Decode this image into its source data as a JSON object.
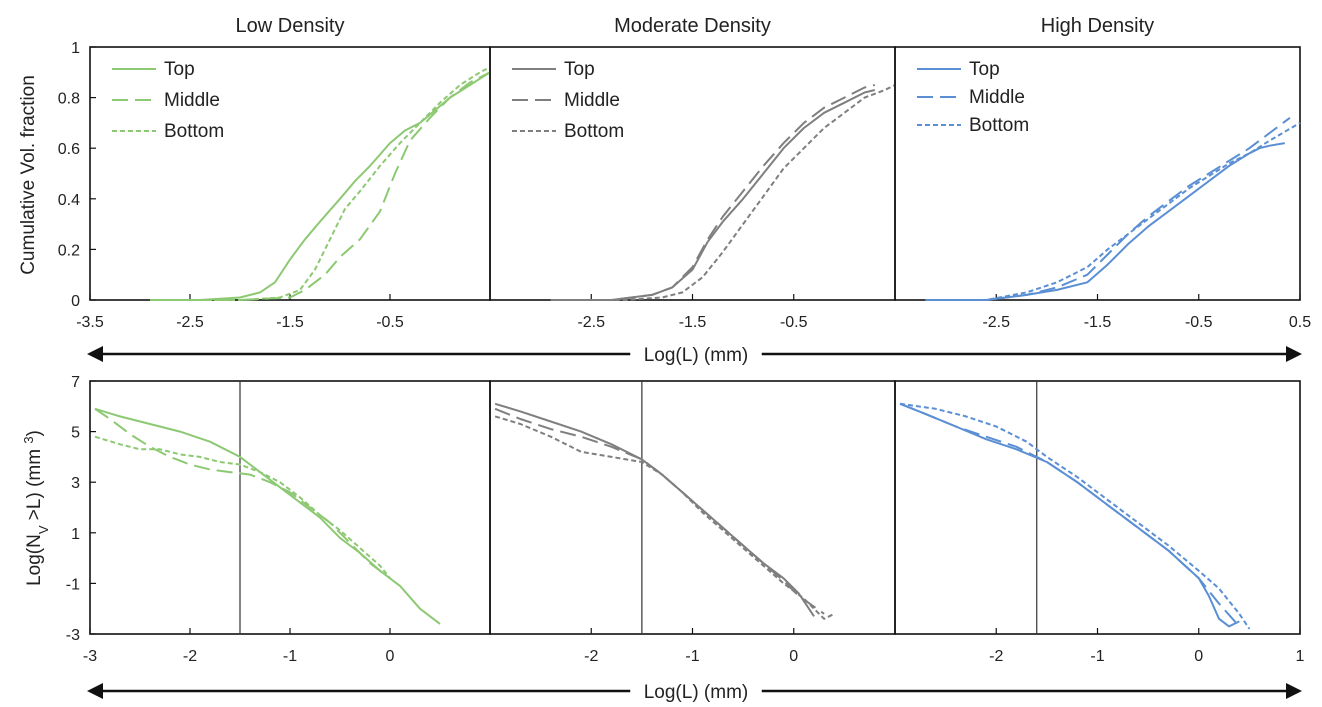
{
  "chart_data": [
    {
      "type": "line",
      "title": "Low Density",
      "ylabel": "Cumulative Vol. fraction",
      "xlabel": "Log(L) (mm)",
      "xlim": [
        -3.5,
        0.5
      ],
      "ylim": [
        0,
        1
      ],
      "xticks": [
        -3.5,
        -2.5,
        -1.5,
        -0.5
      ],
      "yticks": [
        0,
        0.2,
        0.4,
        0.6,
        0.8,
        1
      ],
      "legend_position": "top-left",
      "color": "#8cc972",
      "series": [
        {
          "name": "Top",
          "dash": "solid",
          "x": [
            -2.9,
            -2.4,
            -2.0,
            -1.8,
            -1.65,
            -1.5,
            -1.35,
            -1.2,
            -1.0,
            -0.85,
            -0.7,
            -0.5,
            -0.35,
            -0.2,
            -0.05,
            0.1,
            0.3,
            0.5
          ],
          "y": [
            0.0,
            0.0,
            0.01,
            0.03,
            0.07,
            0.16,
            0.24,
            0.31,
            0.4,
            0.47,
            0.53,
            0.62,
            0.67,
            0.7,
            0.75,
            0.8,
            0.85,
            0.9
          ]
        },
        {
          "name": "Middle",
          "dash": "long",
          "x": [
            -2.9,
            -2.0,
            -1.5,
            -1.35,
            -1.15,
            -1.0,
            -0.8,
            -0.6,
            -0.45,
            -0.3,
            -0.1,
            0.1,
            0.3,
            0.5
          ],
          "y": [
            0.0,
            0.0,
            0.01,
            0.04,
            0.1,
            0.17,
            0.24,
            0.35,
            0.5,
            0.63,
            0.72,
            0.8,
            0.86,
            0.9
          ]
        },
        {
          "name": "Bottom",
          "dash": "short",
          "x": [
            -2.9,
            -2.0,
            -1.6,
            -1.4,
            -1.25,
            -1.1,
            -0.95,
            -0.8,
            -0.6,
            -0.4,
            -0.2,
            0.0,
            0.2,
            0.4,
            0.5
          ],
          "y": [
            0.0,
            0.0,
            0.01,
            0.04,
            0.12,
            0.24,
            0.36,
            0.43,
            0.53,
            0.62,
            0.7,
            0.78,
            0.85,
            0.9,
            0.92
          ]
        }
      ]
    },
    {
      "type": "line",
      "title": "Moderate Density",
      "xlim": [
        -3.5,
        0.5
      ],
      "ylim": [
        0,
        1
      ],
      "xticks": [
        -2.5,
        -1.5,
        -0.5
      ],
      "legend_position": "top-left",
      "color": "#7f7f7f",
      "series": [
        {
          "name": "Top",
          "dash": "solid",
          "x": [
            -2.9,
            -2.3,
            -1.9,
            -1.7,
            -1.5,
            -1.35,
            -1.2,
            -1.0,
            -0.8,
            -0.6,
            -0.4,
            -0.2,
            0.0,
            0.2,
            0.3
          ],
          "y": [
            0.0,
            0.0,
            0.02,
            0.05,
            0.12,
            0.23,
            0.31,
            0.4,
            0.5,
            0.6,
            0.68,
            0.74,
            0.78,
            0.82,
            0.83
          ]
        },
        {
          "name": "Middle",
          "dash": "long",
          "x": [
            -2.9,
            -2.3,
            -1.9,
            -1.7,
            -1.5,
            -1.35,
            -1.2,
            -1.0,
            -0.8,
            -0.6,
            -0.4,
            -0.2,
            0.0,
            0.2,
            0.3
          ],
          "y": [
            0.0,
            0.0,
            0.02,
            0.05,
            0.13,
            0.24,
            0.33,
            0.43,
            0.53,
            0.62,
            0.7,
            0.76,
            0.8,
            0.84,
            0.85
          ]
        },
        {
          "name": "Bottom",
          "dash": "short",
          "x": [
            -2.9,
            -2.2,
            -1.8,
            -1.6,
            -1.4,
            -1.2,
            -1.0,
            -0.8,
            -0.6,
            -0.4,
            -0.2,
            0.0,
            0.2,
            0.4,
            0.5
          ],
          "y": [
            0.0,
            0.0,
            0.01,
            0.03,
            0.09,
            0.19,
            0.3,
            0.41,
            0.52,
            0.6,
            0.68,
            0.74,
            0.8,
            0.83,
            0.85
          ]
        }
      ]
    },
    {
      "type": "line",
      "title": "High Density",
      "xlim": [
        -3.5,
        0.5
      ],
      "ylim": [
        0,
        1
      ],
      "xticks": [
        -2.5,
        -1.5,
        -0.5,
        0.5
      ],
      "legend_position": "top-left",
      "color": "#5b8fd4",
      "series": [
        {
          "name": "Top",
          "dash": "solid",
          "x": [
            -3.2,
            -2.6,
            -2.2,
            -1.9,
            -1.6,
            -1.4,
            -1.2,
            -1.0,
            -0.8,
            -0.6,
            -0.4,
            -0.2,
            0.0,
            0.1,
            0.2,
            0.35
          ],
          "y": [
            0.0,
            0.0,
            0.02,
            0.04,
            0.07,
            0.14,
            0.22,
            0.29,
            0.35,
            0.41,
            0.47,
            0.53,
            0.58,
            0.6,
            0.61,
            0.62
          ]
        },
        {
          "name": "Middle",
          "dash": "long",
          "x": [
            -3.2,
            -2.6,
            -2.2,
            -1.9,
            -1.6,
            -1.4,
            -1.2,
            -1.0,
            -0.8,
            -0.6,
            -0.4,
            -0.2,
            0.0,
            0.2,
            0.4
          ],
          "y": [
            0.0,
            0.0,
            0.02,
            0.05,
            0.1,
            0.18,
            0.26,
            0.33,
            0.39,
            0.45,
            0.5,
            0.55,
            0.6,
            0.66,
            0.72
          ]
        },
        {
          "name": "Bottom",
          "dash": "short",
          "x": [
            -3.2,
            -2.6,
            -2.2,
            -1.9,
            -1.6,
            -1.4,
            -1.2,
            -1.0,
            -0.8,
            -0.6,
            -0.4,
            -0.2,
            0.0,
            0.2,
            0.5
          ],
          "y": [
            0.0,
            0.0,
            0.03,
            0.07,
            0.13,
            0.2,
            0.26,
            0.32,
            0.38,
            0.44,
            0.49,
            0.54,
            0.58,
            0.63,
            0.7
          ]
        }
      ]
    },
    {
      "type": "line",
      "ylabel": "Log(N",
      "ylabel_sub": "V",
      "ylabel_rest": " >L) (mm ",
      "ylabel_sup": "3",
      "ylabel_end": ")",
      "xlabel": "Log(L) (mm)",
      "xlim": [
        -3,
        1
      ],
      "ylim": [
        -3,
        7
      ],
      "xticks": [
        -3,
        -2,
        -1,
        0
      ],
      "yticks": [
        -3,
        -1,
        1,
        3,
        5,
        7
      ],
      "vline_x": -1.5,
      "color": "#8cc972",
      "series": [
        {
          "name": "Top",
          "dash": "solid",
          "x": [
            -2.95,
            -2.7,
            -2.4,
            -2.1,
            -1.8,
            -1.5,
            -1.3,
            -1.1,
            -0.9,
            -0.7,
            -0.5,
            -0.3,
            -0.1,
            0.1,
            0.3,
            0.5
          ],
          "y": [
            5.9,
            5.6,
            5.3,
            5.0,
            4.6,
            4.0,
            3.4,
            2.8,
            2.2,
            1.6,
            0.8,
            0.2,
            -0.5,
            -1.1,
            -2.0,
            -2.6
          ]
        },
        {
          "name": "Middle",
          "dash": "long",
          "x": [
            -2.95,
            -2.8,
            -2.6,
            -2.4,
            -2.2,
            -2.0,
            -1.8,
            -1.6,
            -1.4,
            -1.2,
            -1.0,
            -0.8,
            -0.6,
            -0.4,
            -0.2,
            0.0
          ],
          "y": [
            5.9,
            5.5,
            4.9,
            4.4,
            4.0,
            3.7,
            3.5,
            3.4,
            3.3,
            3.0,
            2.6,
            2.0,
            1.4,
            0.6,
            -0.2,
            -0.8
          ]
        },
        {
          "name": "Bottom",
          "dash": "short",
          "x": [
            -2.95,
            -2.7,
            -2.5,
            -2.3,
            -2.1,
            -1.9,
            -1.7,
            -1.5,
            -1.3,
            -1.1,
            -0.9,
            -0.7,
            -0.5,
            -0.3,
            -0.1,
            0.0
          ],
          "y": [
            4.8,
            4.5,
            4.3,
            4.3,
            4.1,
            4.0,
            3.8,
            3.7,
            3.4,
            3.0,
            2.4,
            1.7,
            1.1,
            0.4,
            -0.3,
            -0.8
          ]
        }
      ]
    },
    {
      "type": "line",
      "xlim": [
        -3,
        1
      ],
      "ylim": [
        -3,
        7
      ],
      "xticks": [
        -2,
        -1,
        0
      ],
      "vline_x": -1.5,
      "color": "#7f7f7f",
      "series": [
        {
          "name": "Top",
          "dash": "solid",
          "x": [
            -2.95,
            -2.7,
            -2.4,
            -2.1,
            -1.8,
            -1.5,
            -1.3,
            -1.1,
            -0.9,
            -0.7,
            -0.5,
            -0.3,
            -0.1,
            0.05,
            0.2
          ],
          "y": [
            6.1,
            5.8,
            5.4,
            5.0,
            4.5,
            3.9,
            3.3,
            2.6,
            1.9,
            1.2,
            0.5,
            -0.2,
            -0.8,
            -1.4,
            -2.3
          ]
        },
        {
          "name": "Middle",
          "dash": "long",
          "x": [
            -2.95,
            -2.7,
            -2.4,
            -2.1,
            -1.8,
            -1.5,
            -1.3,
            -1.1,
            -0.9,
            -0.7,
            -0.5,
            -0.3,
            -0.1,
            0.05,
            0.3
          ],
          "y": [
            5.9,
            5.5,
            5.1,
            4.8,
            4.4,
            3.9,
            3.3,
            2.6,
            1.9,
            1.2,
            0.5,
            -0.2,
            -0.9,
            -1.5,
            -2.2
          ]
        },
        {
          "name": "Bottom",
          "dash": "short",
          "x": [
            -2.95,
            -2.7,
            -2.4,
            -2.1,
            -1.8,
            -1.5,
            -1.3,
            -1.1,
            -0.9,
            -0.7,
            -0.5,
            -0.3,
            -0.1,
            0.1,
            0.3,
            0.4
          ],
          "y": [
            5.6,
            5.3,
            4.8,
            4.2,
            4.0,
            3.8,
            3.3,
            2.6,
            1.8,
            1.1,
            0.4,
            -0.3,
            -1.0,
            -1.6,
            -2.4,
            -2.2
          ]
        }
      ]
    },
    {
      "type": "line",
      "xlim": [
        -3,
        1
      ],
      "ylim": [
        -3,
        7
      ],
      "xticks": [
        -2,
        -1,
        0,
        1
      ],
      "vline_x": -1.6,
      "color": "#5b8fd4",
      "series": [
        {
          "name": "Top",
          "dash": "solid",
          "x": [
            -2.95,
            -2.7,
            -2.4,
            -2.1,
            -1.8,
            -1.5,
            -1.2,
            -0.9,
            -0.6,
            -0.3,
            0.0,
            0.1,
            0.2,
            0.3,
            0.4
          ],
          "y": [
            6.1,
            5.7,
            5.2,
            4.7,
            4.3,
            3.8,
            3.0,
            2.1,
            1.2,
            0.3,
            -0.8,
            -1.5,
            -2.4,
            -2.7,
            -2.5
          ]
        },
        {
          "name": "Middle",
          "dash": "long",
          "x": [
            -2.95,
            -2.7,
            -2.4,
            -2.1,
            -1.8,
            -1.5,
            -1.2,
            -0.9,
            -0.6,
            -0.3,
            0.0,
            0.2,
            0.4
          ],
          "y": [
            6.1,
            5.7,
            5.2,
            4.8,
            4.4,
            3.8,
            3.0,
            2.1,
            1.2,
            0.3,
            -0.8,
            -1.8,
            -2.7
          ]
        },
        {
          "name": "Bottom",
          "dash": "short",
          "x": [
            -2.95,
            -2.6,
            -2.3,
            -2.0,
            -1.7,
            -1.5,
            -1.2,
            -0.9,
            -0.6,
            -0.3,
            0.0,
            0.2,
            0.4,
            0.5
          ],
          "y": [
            6.1,
            5.9,
            5.6,
            5.2,
            4.6,
            4.0,
            3.2,
            2.3,
            1.4,
            0.5,
            -0.5,
            -1.2,
            -2.2,
            -2.8
          ]
        }
      ]
    }
  ]
}
